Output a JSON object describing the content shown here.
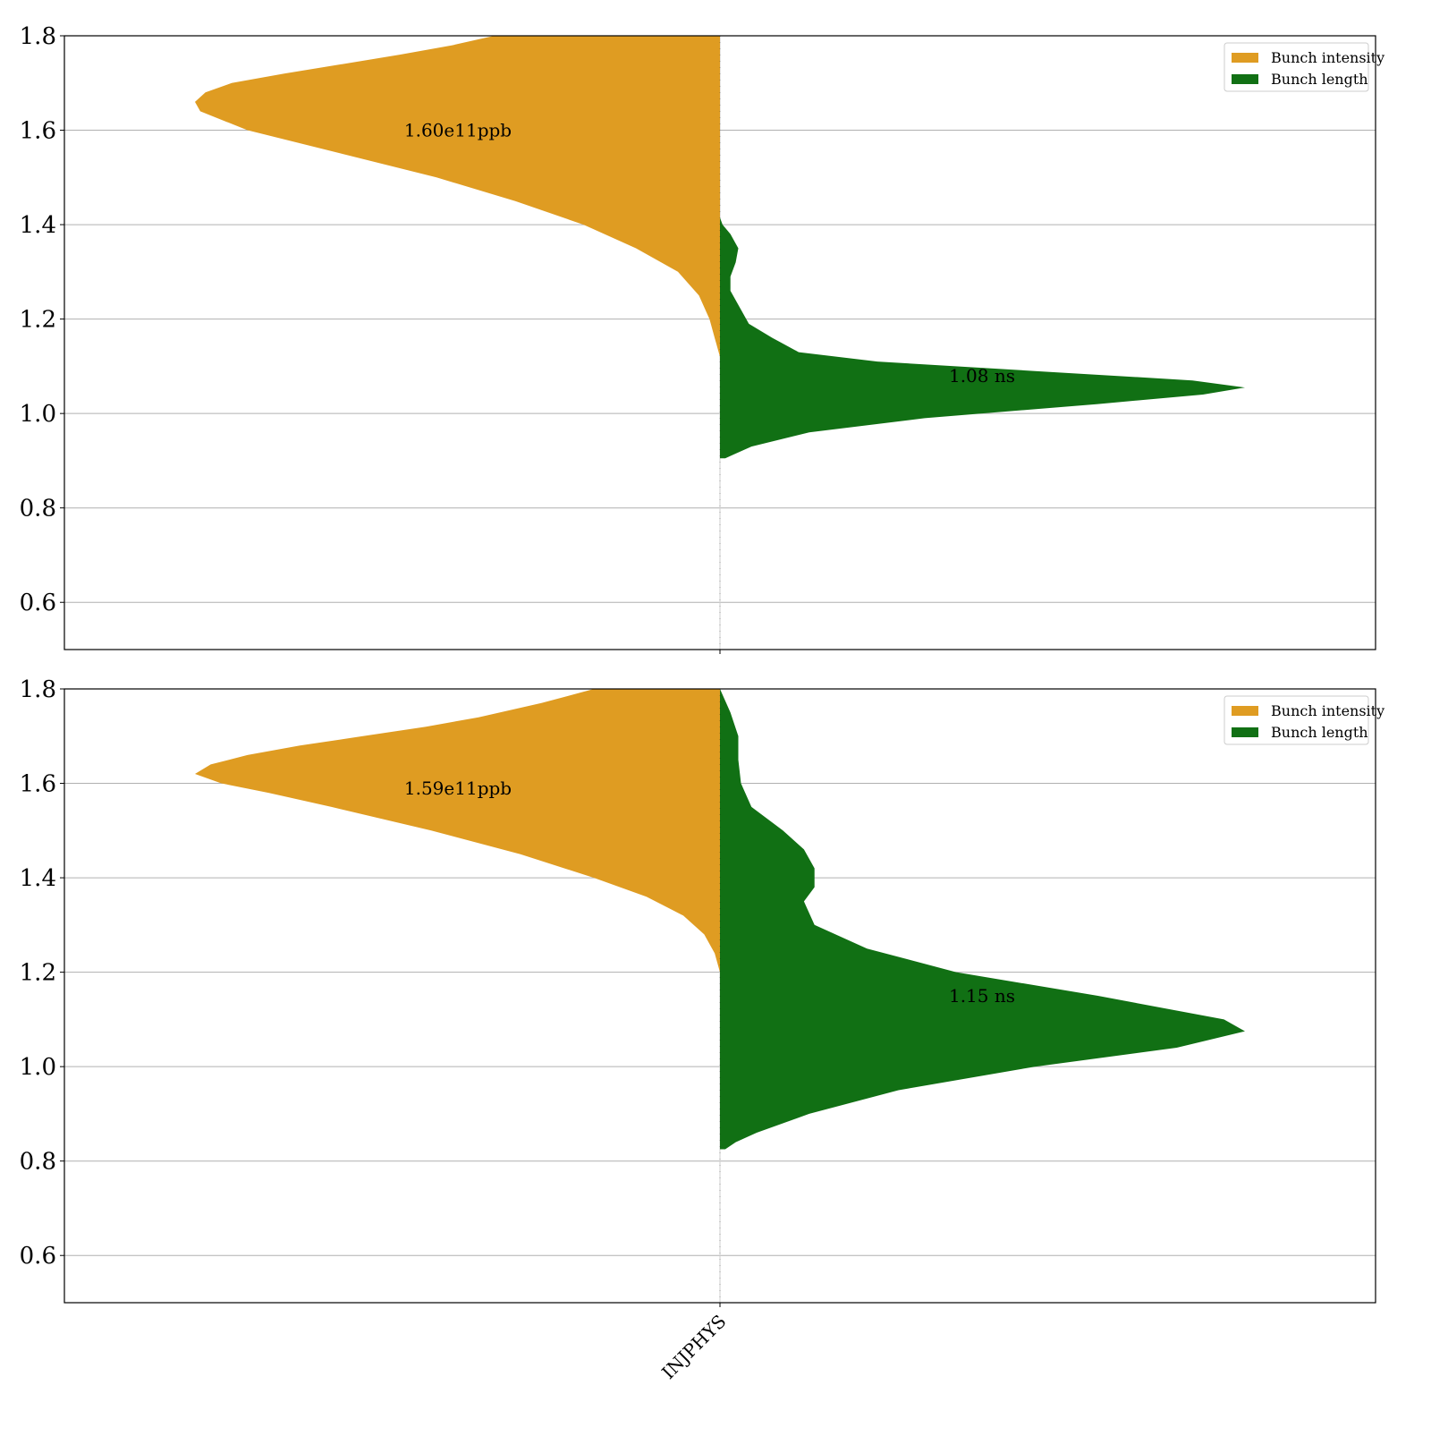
{
  "chart_data": [
    {
      "type": "split-violin",
      "category": "",
      "ylim": [
        0.5,
        1.8
      ],
      "yticks": [
        0.6,
        0.8,
        1.0,
        1.2,
        1.4,
        1.6,
        1.8
      ],
      "ytick_labels": [
        "0.6",
        "0.8",
        "1.0",
        "1.2",
        "1.4",
        "1.6",
        "1.8"
      ],
      "grid": true,
      "legend_position": "top-right",
      "legend": [
        "Bunch intensity",
        "Bunch length"
      ],
      "series": [
        {
          "name": "Bunch intensity",
          "side": "left",
          "color": "#DF9C22",
          "annotation": "1.60e11ppb",
          "annotation_y": 1.6,
          "profile": [
            [
              1.12,
              0.0
            ],
            [
              1.16,
              0.01
            ],
            [
              1.2,
              0.02
            ],
            [
              1.25,
              0.04
            ],
            [
              1.3,
              0.08
            ],
            [
              1.35,
              0.16
            ],
            [
              1.4,
              0.26
            ],
            [
              1.45,
              0.39
            ],
            [
              1.5,
              0.54
            ],
            [
              1.55,
              0.72
            ],
            [
              1.6,
              0.9
            ],
            [
              1.64,
              0.99
            ],
            [
              1.66,
              1.0
            ],
            [
              1.68,
              0.98
            ],
            [
              1.7,
              0.93
            ],
            [
              1.72,
              0.83
            ],
            [
              1.74,
              0.72
            ],
            [
              1.76,
              0.61
            ],
            [
              1.78,
              0.51
            ],
            [
              1.8,
              0.43
            ]
          ]
        },
        {
          "name": "Bunch length",
          "side": "right",
          "color": "#117014",
          "annotation": "1.08 ns",
          "annotation_y": 1.08,
          "profile": [
            [
              0.905,
              0.01
            ],
            [
              0.91,
              0.02
            ],
            [
              0.93,
              0.06
            ],
            [
              0.96,
              0.17
            ],
            [
              0.99,
              0.39
            ],
            [
              1.02,
              0.72
            ],
            [
              1.04,
              0.92
            ],
            [
              1.055,
              1.0
            ],
            [
              1.07,
              0.9
            ],
            [
              1.09,
              0.6
            ],
            [
              1.11,
              0.3
            ],
            [
              1.13,
              0.15
            ],
            [
              1.16,
              0.1
            ],
            [
              1.19,
              0.055
            ],
            [
              1.22,
              0.04
            ],
            [
              1.26,
              0.02
            ],
            [
              1.29,
              0.02
            ],
            [
              1.32,
              0.03
            ],
            [
              1.35,
              0.035
            ],
            [
              1.38,
              0.02
            ],
            [
              1.4,
              0.005
            ],
            [
              1.415,
              0.0
            ]
          ]
        }
      ]
    },
    {
      "type": "split-violin",
      "category": "INJPHYS",
      "ylim": [
        0.5,
        1.8
      ],
      "yticks": [
        0.6,
        0.8,
        1.0,
        1.2,
        1.4,
        1.6,
        1.8
      ],
      "ytick_labels": [
        "0.6",
        "0.8",
        "1.0",
        "1.2",
        "1.4",
        "1.6",
        "1.8"
      ],
      "grid": true,
      "legend_position": "top-right",
      "legend": [
        "Bunch intensity",
        "Bunch length"
      ],
      "series": [
        {
          "name": "Bunch intensity",
          "side": "left",
          "color": "#DF9C22",
          "annotation": "1.59e11ppb",
          "annotation_y": 1.59,
          "profile": [
            [
              1.2,
              0.0
            ],
            [
              1.24,
              0.01
            ],
            [
              1.28,
              0.03
            ],
            [
              1.32,
              0.07
            ],
            [
              1.36,
              0.14
            ],
            [
              1.4,
              0.24
            ],
            [
              1.45,
              0.38
            ],
            [
              1.5,
              0.55
            ],
            [
              1.55,
              0.74
            ],
            [
              1.58,
              0.86
            ],
            [
              1.6,
              0.95
            ],
            [
              1.62,
              1.0
            ],
            [
              1.64,
              0.97
            ],
            [
              1.66,
              0.9
            ],
            [
              1.68,
              0.8
            ],
            [
              1.7,
              0.68
            ],
            [
              1.72,
              0.56
            ],
            [
              1.74,
              0.46
            ],
            [
              1.77,
              0.34
            ],
            [
              1.8,
              0.24
            ]
          ]
        },
        {
          "name": "Bunch length",
          "side": "right",
          "color": "#117014",
          "annotation": "1.15 ns",
          "annotation_y": 1.15,
          "profile": [
            [
              0.825,
              0.01
            ],
            [
              0.84,
              0.03
            ],
            [
              0.86,
              0.07
            ],
            [
              0.9,
              0.17
            ],
            [
              0.95,
              0.34
            ],
            [
              1.0,
              0.6
            ],
            [
              1.04,
              0.87
            ],
            [
              1.075,
              1.0
            ],
            [
              1.1,
              0.96
            ],
            [
              1.15,
              0.72
            ],
            [
              1.2,
              0.45
            ],
            [
              1.25,
              0.28
            ],
            [
              1.3,
              0.18
            ],
            [
              1.35,
              0.16
            ],
            [
              1.38,
              0.18
            ],
            [
              1.42,
              0.18
            ],
            [
              1.46,
              0.16
            ],
            [
              1.5,
              0.12
            ],
            [
              1.55,
              0.06
            ],
            [
              1.6,
              0.04
            ],
            [
              1.65,
              0.035
            ],
            [
              1.7,
              0.035
            ],
            [
              1.75,
              0.02
            ],
            [
              1.8,
              0.0
            ]
          ]
        }
      ]
    }
  ]
}
